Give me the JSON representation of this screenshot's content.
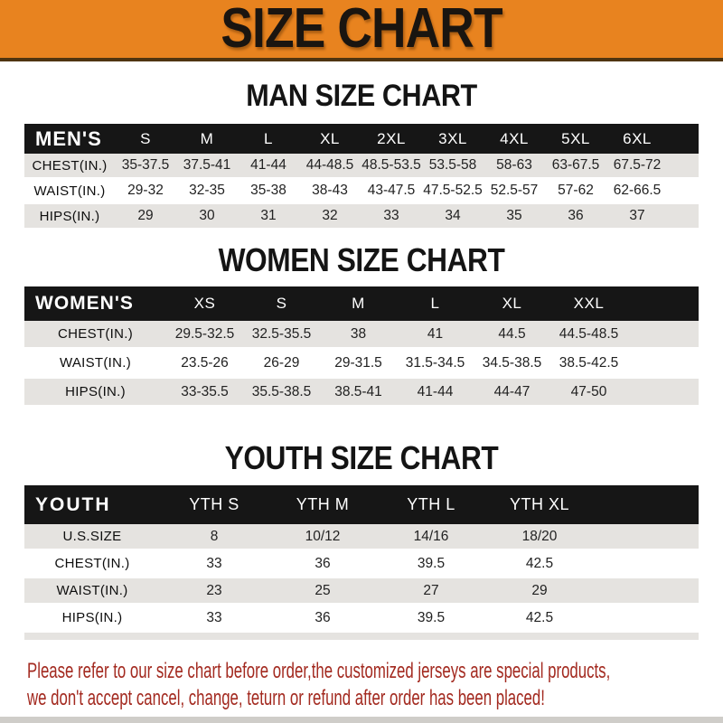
{
  "banner": {
    "title": "SIZE CHART"
  },
  "sections": [
    {
      "heading": "MAN SIZE CHART",
      "label": "MEN'S",
      "columns": [
        "S",
        "M",
        "L",
        "XL",
        "2XL",
        "3XL",
        "4XL",
        "5XL",
        "6XL"
      ],
      "rows": [
        {
          "label": "CHEST(IN.)",
          "values": [
            "35-37.5",
            "37.5-41",
            "41-44",
            "44-48.5",
            "48.5-53.5",
            "53.5-58",
            "58-63",
            "63-67.5",
            "67.5-72"
          ]
        },
        {
          "label": "WAIST(IN.)",
          "values": [
            "29-32",
            "32-35",
            "35-38",
            "38-43",
            "43-47.5",
            "47.5-52.5",
            "52.5-57",
            "57-62",
            "62-66.5"
          ]
        },
        {
          "label": "HIPS(IN.)",
          "values": [
            "29",
            "30",
            "31",
            "32",
            "33",
            "34",
            "35",
            "36",
            "37"
          ]
        }
      ]
    },
    {
      "heading": "WOMEN SIZE CHART",
      "label": "WOMEN'S",
      "columns": [
        "XS",
        "S",
        "M",
        "L",
        "XL",
        "XXL"
      ],
      "rows": [
        {
          "label": "CHEST(IN.)",
          "values": [
            "29.5-32.5",
            "32.5-35.5",
            "38",
            "41",
            "44.5",
            "44.5-48.5"
          ]
        },
        {
          "label": "WAIST(IN.)",
          "values": [
            "23.5-26",
            "26-29",
            "29-31.5",
            "31.5-34.5",
            "34.5-38.5",
            "38.5-42.5"
          ]
        },
        {
          "label": "HIPS(IN.)",
          "values": [
            "33-35.5",
            "35.5-38.5",
            "38.5-41",
            "41-44",
            "44-47",
            "47-50"
          ]
        }
      ]
    },
    {
      "heading": "YOUTH SIZE CHART",
      "label": "YOUTH",
      "columns": [
        "YTH S",
        "YTH M",
        "YTH L",
        "YTH XL"
      ],
      "rows": [
        {
          "label": "U.S.SIZE",
          "values": [
            "8",
            "10/12",
            "14/16",
            "18/20"
          ]
        },
        {
          "label": "CHEST(IN.)",
          "values": [
            "33",
            "36",
            "39.5",
            "42.5"
          ]
        },
        {
          "label": "WAIST(IN.)",
          "values": [
            "23",
            "25",
            "27",
            "29"
          ]
        },
        {
          "label": "HIPS(IN.)",
          "values": [
            "33",
            "36",
            "39.5",
            "42.5"
          ]
        }
      ]
    }
  ],
  "footer": {
    "line1": "Please refer to our size chart before order,the customized jerseys are special products,",
    "line2": "we don't accept cancel, change, teturn or refund after order has been placed!"
  },
  "colors": {
    "banner_orange": "#E8831F",
    "header_bar_black": "#161616",
    "row_gray": "#E5E3E0",
    "footer_red": "#A32A20"
  }
}
